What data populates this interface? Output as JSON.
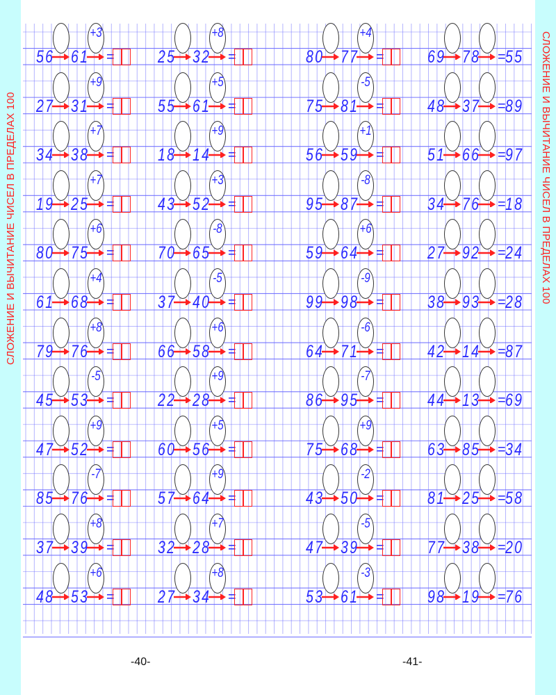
{
  "side_title_left": "СЛОЖЕНИЕ И ВЫЧИТАНИЕ  ЧИСЕЛ В ПРЕДЕЛАХ 100",
  "side_title_right": "СЛОЖЕНИЕ И ВЫЧИТАНИЕ  ЧИСЕЛ В ПРЕДЕЛАХ 100",
  "page_numbers": [
    "-40-",
    "-41-"
  ],
  "colors": {
    "digits": "#2a2aff",
    "arrows": "#ff2020",
    "grid": "#6a6aff",
    "border": "#c8fdfd"
  },
  "columns": [
    {
      "type": "find-result",
      "rows": [
        {
          "a": "56",
          "b": "61",
          "op": "+3"
        },
        {
          "a": "27",
          "b": "31",
          "op": "+9"
        },
        {
          "a": "34",
          "b": "38",
          "op": "+7"
        },
        {
          "a": "19",
          "b": "25",
          "op": "+7"
        },
        {
          "a": "80",
          "b": "75",
          "op": "+6"
        },
        {
          "a": "61",
          "b": "68",
          "op": "+4"
        },
        {
          "a": "79",
          "b": "76",
          "op": "+8"
        },
        {
          "a": "45",
          "b": "53",
          "op": "-5"
        },
        {
          "a": "47",
          "b": "52",
          "op": "+9"
        },
        {
          "a": "85",
          "b": "76",
          "op": "-7"
        },
        {
          "a": "37",
          "b": "39",
          "op": "+8"
        },
        {
          "a": "48",
          "b": "53",
          "op": "+6"
        }
      ]
    },
    {
      "type": "find-result",
      "rows": [
        {
          "a": "25",
          "b": "32",
          "op": "+8"
        },
        {
          "a": "55",
          "b": "61",
          "op": "+5"
        },
        {
          "a": "18",
          "b": "14",
          "op": "+9"
        },
        {
          "a": "43",
          "b": "52",
          "op": "+3"
        },
        {
          "a": "70",
          "b": "65",
          "op": "-8"
        },
        {
          "a": "37",
          "b": "40",
          "op": "-5"
        },
        {
          "a": "66",
          "b": "58",
          "op": "+6"
        },
        {
          "a": "22",
          "b": "28",
          "op": "+9"
        },
        {
          "a": "60",
          "b": "56",
          "op": "+5"
        },
        {
          "a": "57",
          "b": "64",
          "op": "+9"
        },
        {
          "a": "32",
          "b": "28",
          "op": "+7"
        },
        {
          "a": "27",
          "b": "34",
          "op": "+8"
        }
      ]
    },
    {
      "type": "find-result",
      "rows": [
        {
          "a": "80",
          "b": "77",
          "op": "+4"
        },
        {
          "a": "75",
          "b": "81",
          "op": "-5"
        },
        {
          "a": "56",
          "b": "59",
          "op": "+1"
        },
        {
          "a": "95",
          "b": "87",
          "op": "-8"
        },
        {
          "a": "59",
          "b": "64",
          "op": "+6"
        },
        {
          "a": "99",
          "b": "98",
          "op": "-9"
        },
        {
          "a": "64",
          "b": "71",
          "op": "-6"
        },
        {
          "a": "86",
          "b": "95",
          "op": "-7"
        },
        {
          "a": "75",
          "b": "68",
          "op": "+9"
        },
        {
          "a": "43",
          "b": "50",
          "op": "-2"
        },
        {
          "a": "47",
          "b": "39",
          "op": "-5"
        },
        {
          "a": "53",
          "b": "61",
          "op": "-3"
        }
      ]
    },
    {
      "type": "find-operations",
      "rows": [
        {
          "a": "69",
          "b": "78",
          "result": "55"
        },
        {
          "a": "48",
          "b": "37",
          "result": "89"
        },
        {
          "a": "51",
          "b": "66",
          "result": "97"
        },
        {
          "a": "34",
          "b": "76",
          "result": "18"
        },
        {
          "a": "27",
          "b": "92",
          "result": "24"
        },
        {
          "a": "38",
          "b": "93",
          "result": "28"
        },
        {
          "a": "42",
          "b": "14",
          "result": "87"
        },
        {
          "a": "44",
          "b": "13",
          "result": "69"
        },
        {
          "a": "63",
          "b": "85",
          "result": "34"
        },
        {
          "a": "81",
          "b": "25",
          "result": "58"
        },
        {
          "a": "77",
          "b": "38",
          "result": "20"
        },
        {
          "a": "98",
          "b": "19",
          "result": "76"
        }
      ]
    }
  ]
}
